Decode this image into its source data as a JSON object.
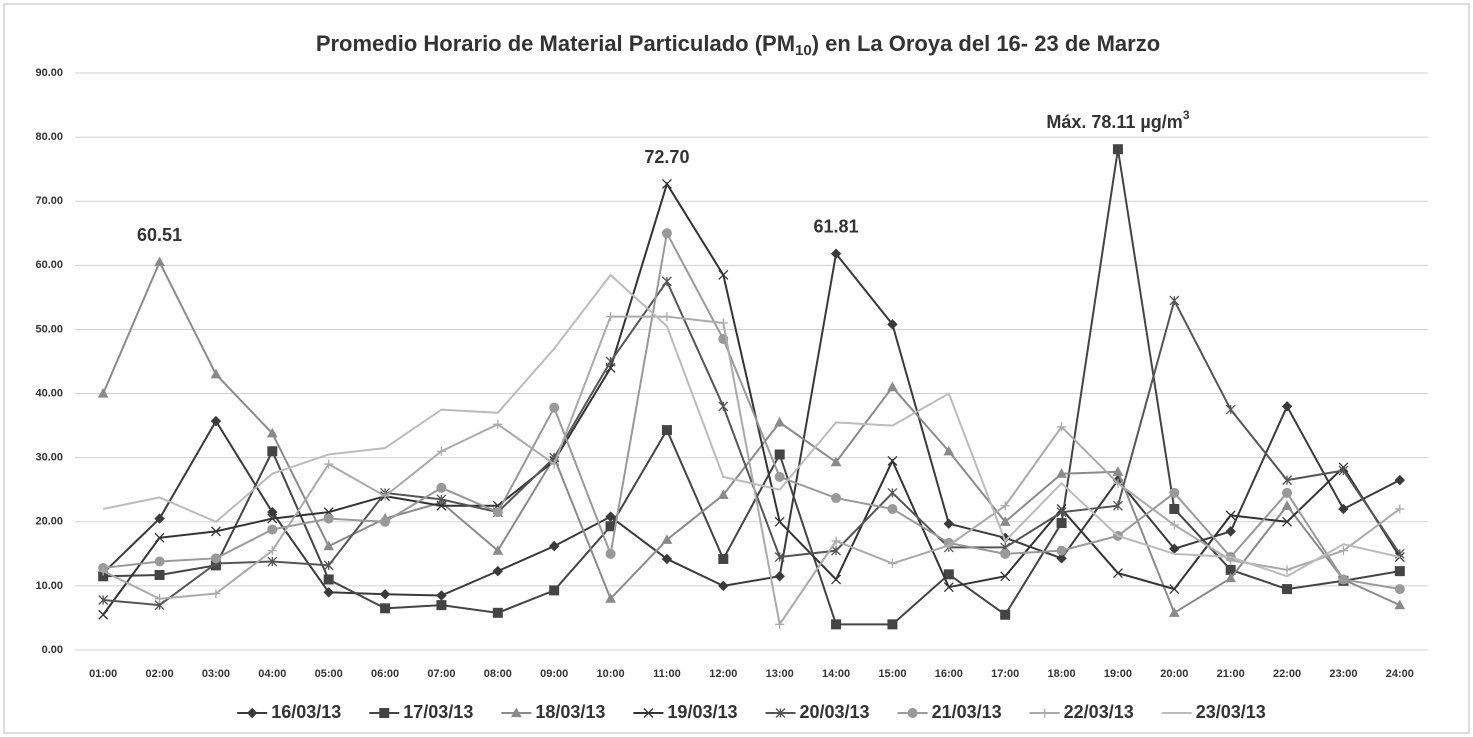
{
  "chart_data": {
    "type": "line",
    "title": {
      "main": "Promedio Horario de Material Particulado (PM",
      "sub": "10",
      "end": ") en La Oroya del 16- 23 de Marzo"
    },
    "categories": [
      "01:00",
      "02:00",
      "03:00",
      "04:00",
      "05:00",
      "06:00",
      "07:00",
      "08:00",
      "09:00",
      "10:00",
      "11:00",
      "12:00",
      "13:00",
      "14:00",
      "15:00",
      "16:00",
      "17:00",
      "18:00",
      "19:00",
      "20:00",
      "21:00",
      "22:00",
      "23:00",
      "24:00"
    ],
    "ylim": [
      0,
      90
    ],
    "yticks": [
      {
        "value": 0,
        "label": "0.00"
      },
      {
        "value": 10,
        "label": "10.00"
      },
      {
        "value": 20,
        "label": "20.00"
      },
      {
        "value": 30,
        "label": "30.00"
      },
      {
        "value": 40,
        "label": "40.00"
      },
      {
        "value": 50,
        "label": "50.00"
      },
      {
        "value": 60,
        "label": "60.00"
      },
      {
        "value": 70,
        "label": "70.00"
      },
      {
        "value": 80,
        "label": "80.00"
      },
      {
        "value": 90,
        "label": "90.00"
      }
    ],
    "grid": true,
    "legend": "bottom",
    "series": [
      {
        "name": "16/03/13",
        "color": "#3a3a3a",
        "marker": "diamond",
        "values": [
          12,
          20.5,
          35.7,
          21.5,
          9,
          8.7,
          8.5,
          12.3,
          16.2,
          20.8,
          14.2,
          10,
          11.5,
          61.81,
          50.8,
          19.7,
          17.5,
          14.3,
          26.5,
          15.8,
          18.5,
          38,
          22,
          26.5
        ]
      },
      {
        "name": "17/03/13",
        "color": "#444444",
        "marker": "square",
        "values": [
          11.5,
          11.7,
          13.2,
          31,
          11,
          6.5,
          7,
          5.8,
          9.3,
          19.3,
          34.3,
          14.2,
          30.5,
          4,
          4,
          11.8,
          5.5,
          19.8,
          78.11,
          22,
          12.5,
          9.5,
          10.8,
          12.3
        ]
      },
      {
        "name": "18/03/13",
        "color": "#8a8a8a",
        "marker": "triangle",
        "values": [
          40,
          60.51,
          43,
          33.8,
          16.2,
          20.5,
          23,
          15.5,
          30,
          8,
          17.2,
          24.2,
          35.5,
          29.3,
          41,
          31,
          20,
          27.5,
          27.8,
          5.8,
          11.2,
          22.5,
          11,
          7
        ]
      },
      {
        "name": "19/03/13",
        "color": "#333333",
        "marker": "x",
        "values": [
          5.5,
          17.5,
          18.5,
          20.5,
          21.5,
          24,
          22.5,
          22.5,
          29.5,
          44,
          72.7,
          58.5,
          20,
          11,
          29.5,
          9.8,
          11.5,
          22,
          12,
          9.5,
          21,
          20,
          28.5,
          14.5
        ]
      },
      {
        "name": "20/03/13",
        "color": "#555555",
        "marker": "star",
        "values": [
          7.8,
          7,
          13.5,
          13.8,
          13.2,
          24.5,
          23.5,
          21.5,
          30,
          45,
          57.5,
          38,
          14.5,
          15.5,
          24.5,
          16,
          16,
          21.5,
          22.5,
          54.5,
          37.5,
          26.5,
          28,
          15
        ]
      },
      {
        "name": "21/03/13",
        "color": "#999999",
        "marker": "circle",
        "values": [
          12.8,
          13.8,
          14.3,
          18.8,
          20.5,
          20,
          25.3,
          21.5,
          37.8,
          15,
          65,
          48.5,
          27,
          23.7,
          22,
          16.7,
          15,
          15.5,
          17.8,
          24.5,
          14.5,
          24.5,
          11,
          9.5
        ]
      },
      {
        "name": "22/03/13",
        "color": "#aaaaaa",
        "marker": "plus",
        "values": [
          12.3,
          8,
          8.8,
          15.5,
          29,
          24,
          31,
          35.2,
          29,
          52,
          52,
          51,
          4,
          17,
          13.5,
          16.3,
          22.5,
          34.8,
          26,
          19.5,
          14,
          12.5,
          15.5,
          22
        ]
      },
      {
        "name": "23/03/13",
        "color": "#bbbbbb",
        "marker": "none",
        "values": [
          22,
          23.8,
          20,
          27.5,
          30.5,
          31.5,
          37.5,
          37,
          47,
          58.5,
          50.5,
          27,
          25,
          35.5,
          35,
          40,
          17,
          26,
          17.8,
          15,
          14.5,
          11.5,
          16.5,
          14.5
        ]
      }
    ],
    "annotations": [
      {
        "text": "60.51",
        "x": "02:00",
        "y": 60.51
      },
      {
        "text": "72.70",
        "x": "11:00",
        "y": 72.7
      },
      {
        "text": "61.81",
        "x": "14:00",
        "y": 61.81
      },
      {
        "text": "Máx. 78.11 µg/m",
        "sup": "3",
        "x": "19:00",
        "y": 78.11
      }
    ]
  }
}
